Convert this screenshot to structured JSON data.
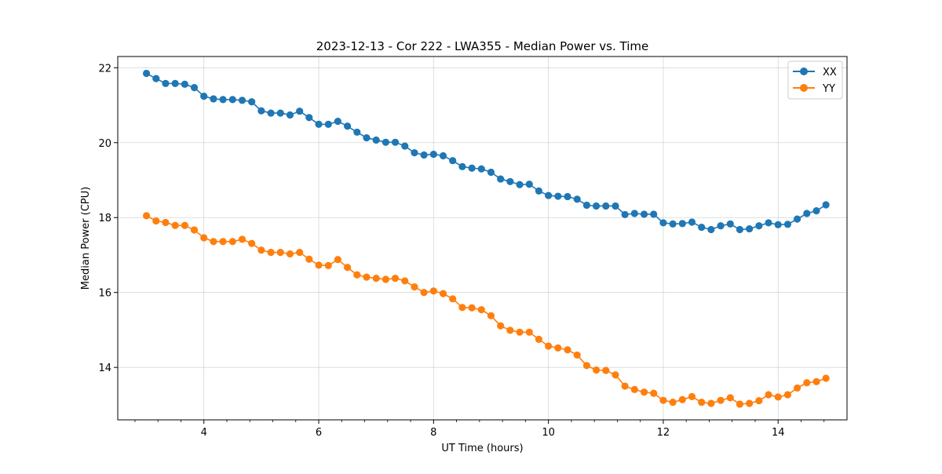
{
  "chart_data": {
    "type": "line",
    "title": "2023-12-13 - Cor 222 - LWA355 - Median Power vs. Time",
    "xlabel": "UT Time (hours)",
    "ylabel": "Median Power (CPU)",
    "xlim": [
      2.5,
      15.2
    ],
    "ylim": [
      12.6,
      22.3
    ],
    "xticks": [
      4,
      6,
      8,
      10,
      12,
      14
    ],
    "xtick_labels": [
      "4",
      "6",
      "8",
      "10",
      "12",
      "14"
    ],
    "yticks": [
      14,
      16,
      18,
      20,
      22
    ],
    "ytick_labels": [
      "14",
      "16",
      "18",
      "20",
      "22"
    ],
    "grid": true,
    "legend_position": "top-right",
    "x": [
      3.0,
      3.167,
      3.333,
      3.5,
      3.667,
      3.833,
      4.0,
      4.167,
      4.333,
      4.5,
      4.667,
      4.833,
      5.0,
      5.167,
      5.333,
      5.5,
      5.667,
      5.833,
      6.0,
      6.167,
      6.333,
      6.5,
      6.667,
      6.833,
      7.0,
      7.167,
      7.333,
      7.5,
      7.667,
      7.833,
      8.0,
      8.167,
      8.333,
      8.5,
      8.667,
      8.833,
      9.0,
      9.167,
      9.333,
      9.5,
      9.667,
      9.833,
      10.0,
      10.167,
      10.333,
      10.5,
      10.667,
      10.833,
      11.0,
      11.167,
      11.333,
      11.5,
      11.667,
      11.833,
      12.0,
      12.167,
      12.333,
      12.5,
      12.667,
      12.833,
      13.0,
      13.167,
      13.333,
      13.5,
      13.667,
      13.833,
      14.0,
      14.167,
      14.333,
      14.5,
      14.667,
      14.833
    ],
    "series": [
      {
        "name": "XX",
        "color": "#1f77b4",
        "values": [
          21.85,
          21.71,
          21.58,
          21.58,
          21.56,
          21.47,
          21.24,
          21.17,
          21.15,
          21.15,
          21.13,
          21.09,
          20.85,
          20.79,
          20.79,
          20.74,
          20.84,
          20.67,
          20.49,
          20.49,
          20.57,
          20.44,
          20.28,
          20.13,
          20.07,
          20.01,
          20.01,
          19.91,
          19.73,
          19.67,
          19.69,
          19.65,
          19.52,
          19.36,
          19.32,
          19.3,
          19.21,
          19.03,
          18.96,
          18.88,
          18.89,
          18.71,
          18.59,
          18.57,
          18.56,
          18.49,
          18.33,
          18.31,
          18.31,
          18.31,
          18.08,
          18.11,
          18.09,
          18.09,
          17.86,
          17.83,
          17.84,
          17.88,
          17.74,
          17.68,
          17.78,
          17.83,
          17.68,
          17.7,
          17.78,
          17.86,
          17.81,
          17.82,
          17.96,
          18.11,
          18.18,
          18.34
        ]
      },
      {
        "name": "YY",
        "color": "#ff7f0e",
        "values": [
          18.05,
          17.91,
          17.87,
          17.79,
          17.79,
          17.67,
          17.46,
          17.36,
          17.36,
          17.36,
          17.42,
          17.31,
          17.13,
          17.07,
          17.07,
          17.03,
          17.07,
          16.89,
          16.73,
          16.72,
          16.88,
          16.67,
          16.47,
          16.41,
          16.38,
          16.35,
          16.38,
          16.31,
          16.15,
          16.0,
          16.04,
          15.97,
          15.83,
          15.6,
          15.59,
          15.54,
          15.38,
          15.11,
          14.99,
          14.94,
          14.94,
          14.75,
          14.57,
          14.52,
          14.47,
          14.33,
          14.05,
          13.93,
          13.92,
          13.8,
          13.5,
          13.41,
          13.34,
          13.31,
          13.12,
          13.07,
          13.14,
          13.22,
          13.07,
          13.04,
          13.12,
          13.19,
          13.02,
          13.04,
          13.11,
          13.27,
          13.21,
          13.27,
          13.45,
          13.59,
          13.62,
          13.71
        ]
      }
    ]
  }
}
